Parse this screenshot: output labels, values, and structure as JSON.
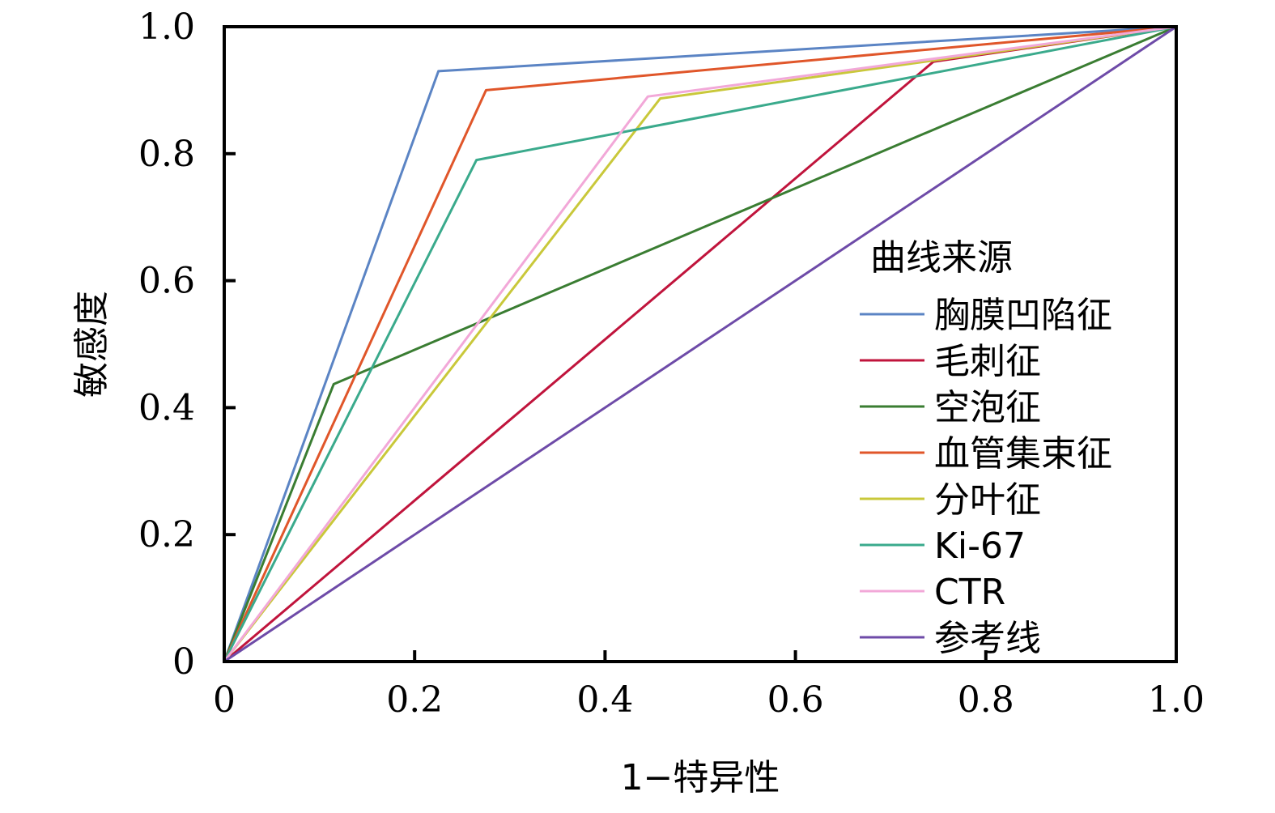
{
  "chart_data": {
    "type": "line",
    "xlabel": "1−特异性",
    "ylabel": "敏感度",
    "xlim": [
      0,
      1
    ],
    "ylim": [
      0,
      1
    ],
    "x_ticks": [
      "0",
      "0.2",
      "0.4",
      "0.6",
      "0.8",
      "1.0"
    ],
    "y_ticks": [
      "0",
      "0.2",
      "0.4",
      "0.6",
      "0.8",
      "1.0"
    ],
    "grid": false,
    "legend": {
      "title": "曲线来源",
      "placement": "right"
    },
    "series": [
      {
        "name": "胸膜凹陷征",
        "color": "#5B84C4",
        "points": [
          [
            0,
            0
          ],
          [
            0.225,
            0.93
          ],
          [
            1,
            1
          ]
        ]
      },
      {
        "name": "毛刺征",
        "color": "#C0143C",
        "points": [
          [
            0,
            0
          ],
          [
            0.745,
            0.945
          ],
          [
            1,
            1
          ]
        ]
      },
      {
        "name": "空泡征",
        "color": "#3A7D32",
        "points": [
          [
            0,
            0
          ],
          [
            0.115,
            0.437
          ],
          [
            1,
            1
          ]
        ]
      },
      {
        "name": "血管集束征",
        "color": "#E0562A",
        "points": [
          [
            0,
            0
          ],
          [
            0.275,
            0.9
          ],
          [
            1,
            1
          ]
        ]
      },
      {
        "name": "分叶征",
        "color": "#C9C83A",
        "points": [
          [
            0,
            0
          ],
          [
            0.458,
            0.887
          ],
          [
            1,
            1
          ]
        ]
      },
      {
        "name": "Ki-67",
        "color": "#3AAA8C",
        "points": [
          [
            0,
            0
          ],
          [
            0.265,
            0.79
          ],
          [
            1,
            1
          ]
        ]
      },
      {
        "name": "CTR",
        "color": "#F2A8D8",
        "points": [
          [
            0,
            0
          ],
          [
            0.445,
            0.89
          ],
          [
            1,
            1
          ]
        ]
      },
      {
        "name": "参考线",
        "color": "#6E4BA8",
        "points": [
          [
            0,
            0
          ],
          [
            1,
            1
          ]
        ]
      }
    ]
  }
}
